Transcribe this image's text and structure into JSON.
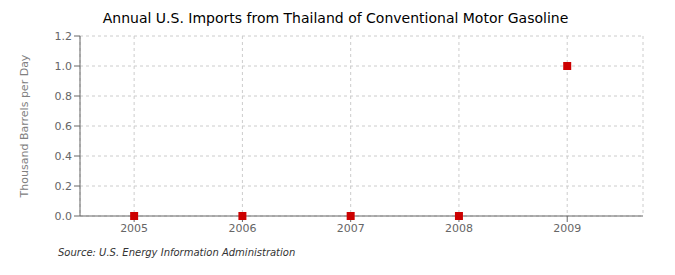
{
  "chart_data": {
    "type": "scatter",
    "title": "Annual U.S. Imports from Thailand of Conventional Motor Gasoline",
    "ylabel": "Thousand Barrels per Day",
    "annotations": [
      "Source: U.S. Energy Information Administration"
    ],
    "x": [
      2005,
      2006,
      2007,
      2008,
      2009
    ],
    "values": [
      0.0,
      0.0,
      0.0,
      0.0,
      1.0
    ],
    "color": "#CC0000",
    "marker": "square",
    "xlim": [
      2004.5,
      2009.7
    ],
    "xticks": [
      2005,
      2006,
      2007,
      2008,
      2009
    ],
    "ylim": [
      0.0,
      1.2
    ],
    "yticks": [
      {
        "value": 0.0,
        "label": "0.0"
      },
      {
        "value": 0.2,
        "label": "0.2"
      },
      {
        "value": 0.4,
        "label": "0.4"
      },
      {
        "value": 0.6,
        "label": "0.6"
      },
      {
        "value": 0.8,
        "label": "0.8"
      },
      {
        "value": 1.0,
        "label": "1.0"
      },
      {
        "value": 1.2,
        "label": "1.2"
      }
    ],
    "grid": true
  }
}
